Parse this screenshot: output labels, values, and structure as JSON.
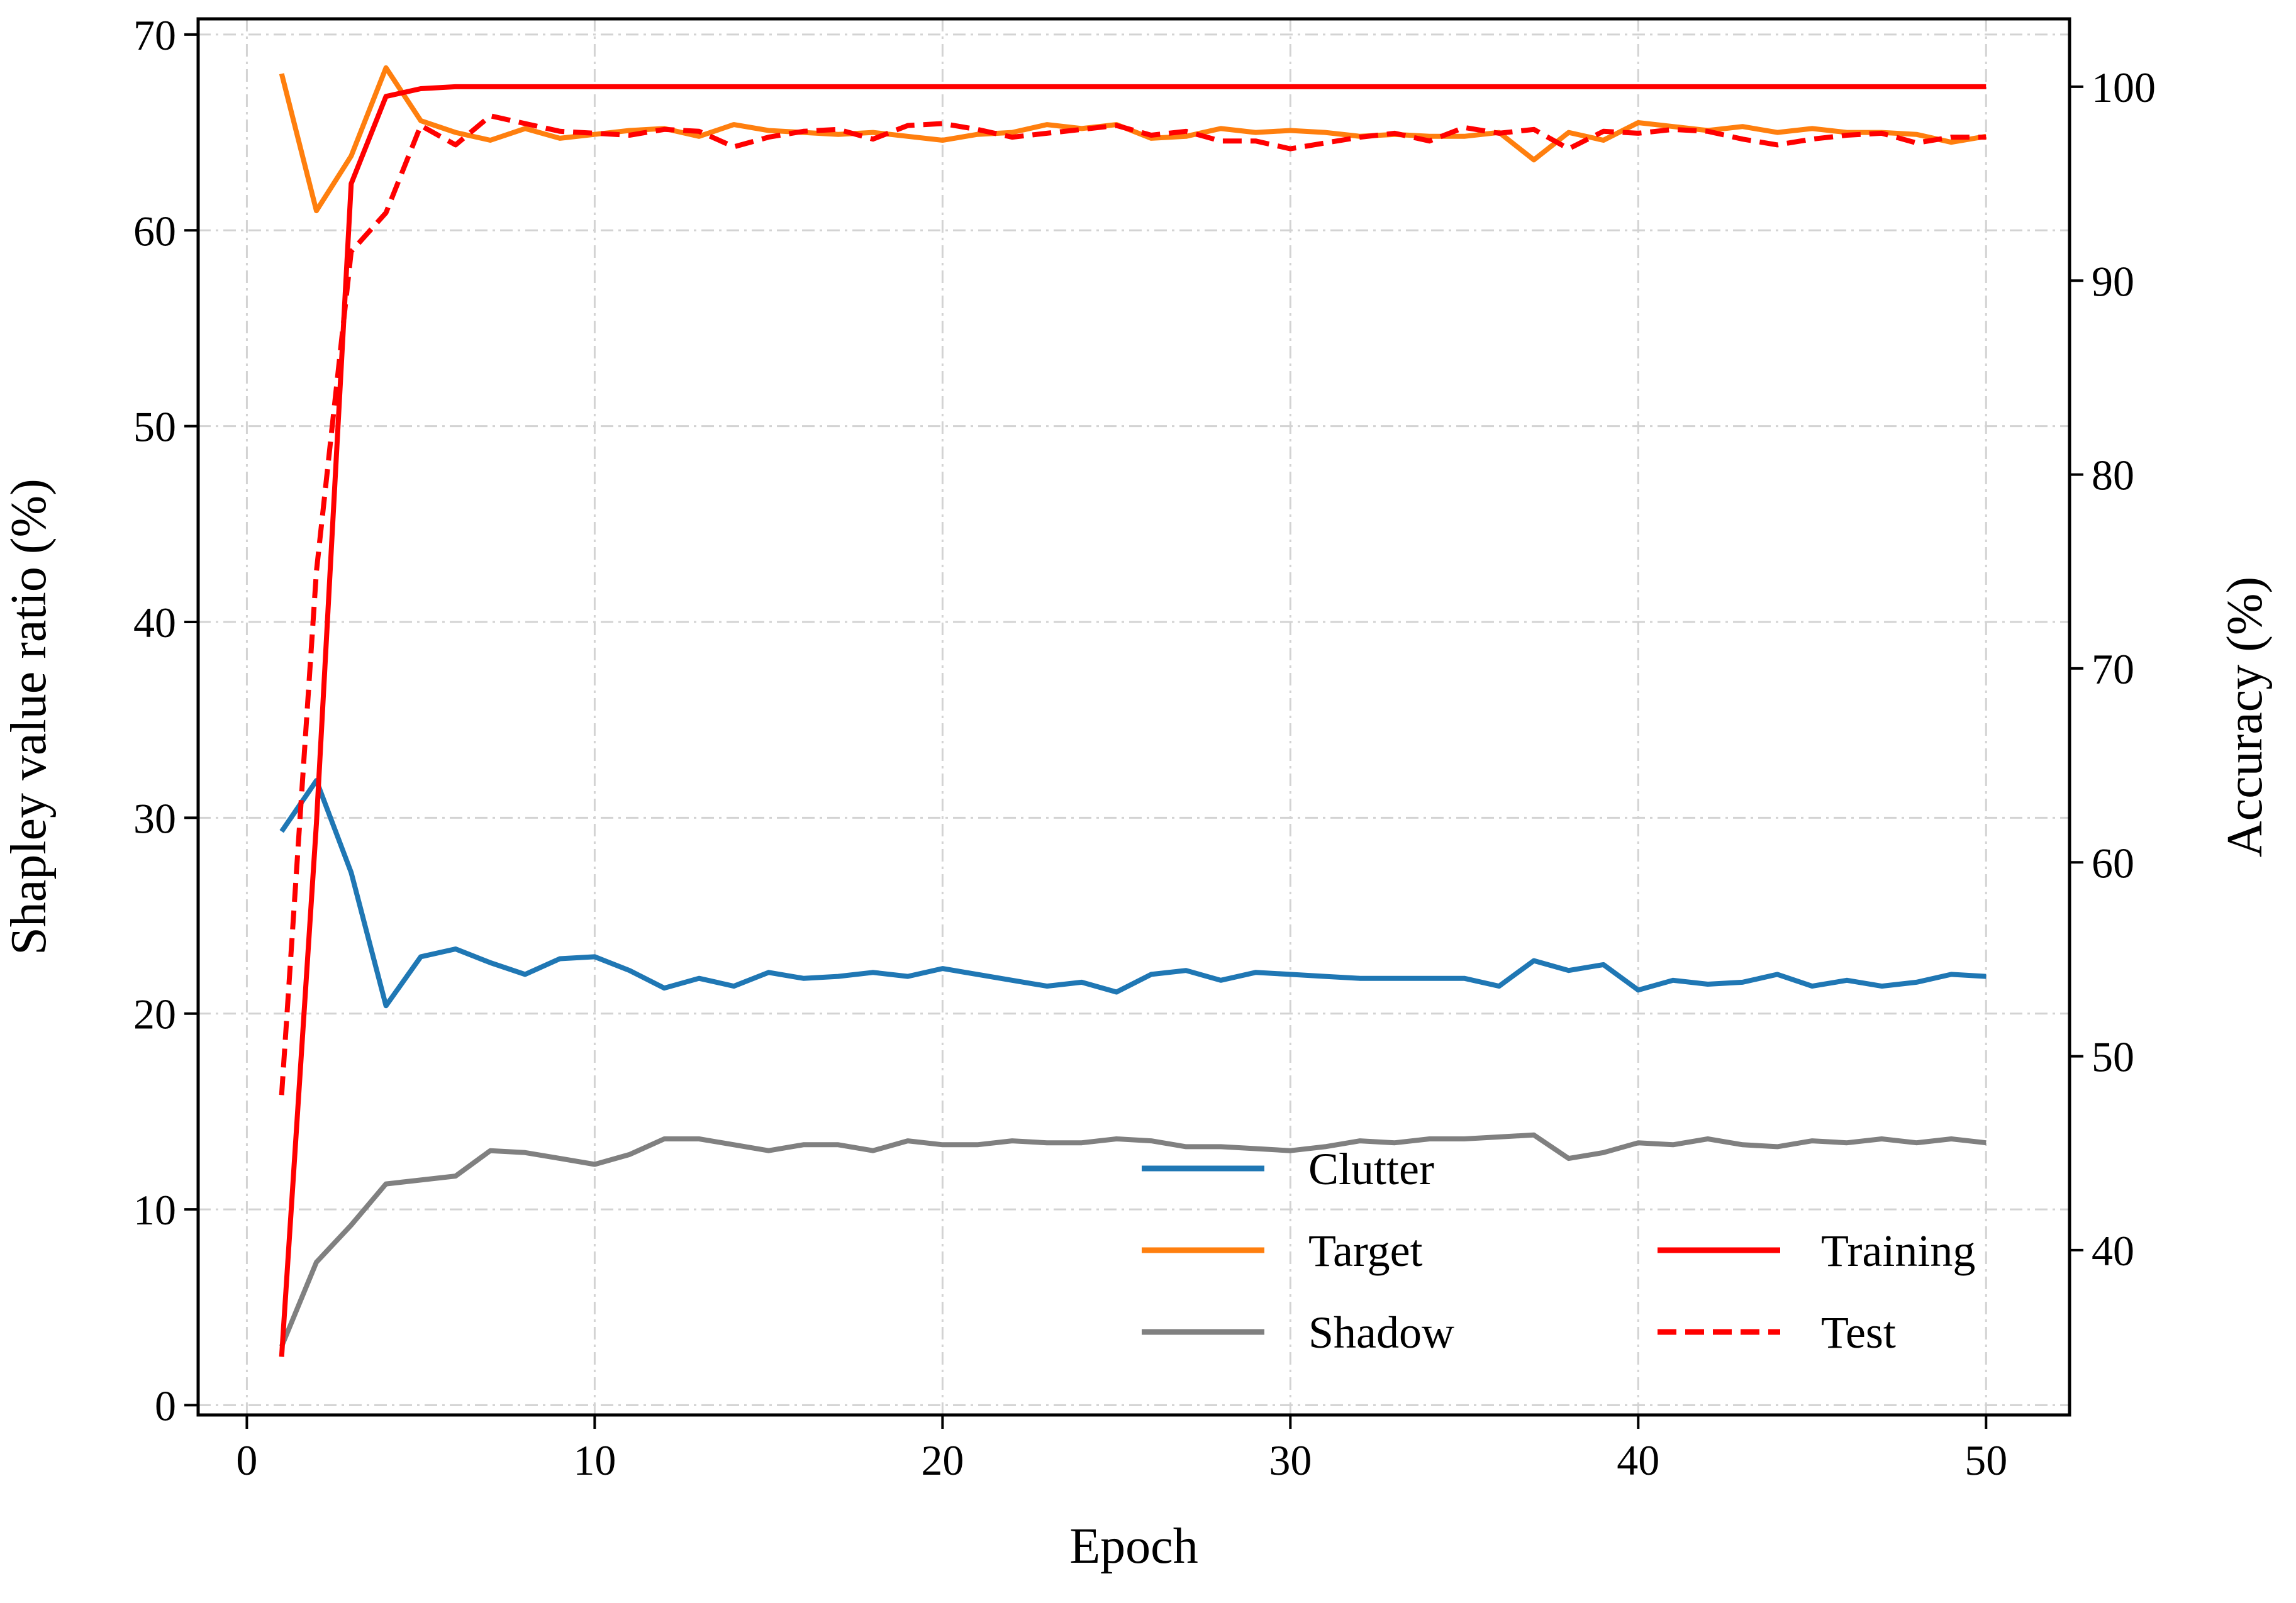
{
  "chart_data": {
    "type": "line",
    "title": "",
    "xlabel": "Epoch",
    "ylabel": "Shapley value ratio (%)",
    "y2label": "Accuracy (%)",
    "xlim": [
      -1.4,
      52.4
    ],
    "ylim": [
      -0.5,
      70.8
    ],
    "y2lim": [
      31.5,
      103.5
    ],
    "xticks": [
      0,
      10,
      20,
      30,
      40,
      50
    ],
    "yticks": [
      0,
      10,
      20,
      30,
      40,
      50,
      60,
      70
    ],
    "y2ticks": [
      40,
      50,
      60,
      70,
      80,
      90,
      100
    ],
    "grid": true,
    "legend_placement": "lower-right",
    "x": [
      1,
      2,
      3,
      4,
      5,
      6,
      7,
      8,
      9,
      10,
      11,
      12,
      13,
      14,
      15,
      16,
      17,
      18,
      19,
      20,
      21,
      22,
      23,
      24,
      25,
      26,
      27,
      28,
      29,
      30,
      31,
      32,
      33,
      34,
      35,
      36,
      37,
      38,
      39,
      40,
      41,
      42,
      43,
      44,
      45,
      46,
      47,
      48,
      49,
      50
    ],
    "series": [
      {
        "name": "Clutter",
        "axis": "left",
        "color": "#1f77b4",
        "style": "solid",
        "values": [
          29.3,
          31.9,
          27.2,
          20.4,
          22.9,
          23.3,
          22.6,
          22.0,
          22.8,
          22.9,
          22.2,
          21.3,
          21.8,
          21.4,
          22.1,
          21.8,
          21.9,
          22.1,
          21.9,
          22.3,
          22.0,
          21.7,
          21.4,
          21.6,
          21.1,
          22.0,
          22.2,
          21.7,
          22.1,
          22.0,
          21.9,
          21.8,
          21.8,
          21.8,
          21.8,
          21.4,
          22.7,
          22.2,
          22.5,
          21.2,
          21.7,
          21.5,
          21.6,
          22.0,
          21.4,
          21.7,
          21.4,
          21.6,
          22.0,
          21.9
        ]
      },
      {
        "name": "Target",
        "axis": "left",
        "color": "#ff7f0e",
        "style": "solid",
        "values": [
          68.0,
          61.0,
          63.8,
          68.3,
          65.6,
          65.0,
          64.6,
          65.2,
          64.7,
          64.9,
          65.1,
          65.2,
          64.8,
          65.4,
          65.1,
          65.0,
          64.9,
          65.0,
          64.8,
          64.6,
          64.9,
          65.0,
          65.4,
          65.2,
          65.4,
          64.7,
          64.8,
          65.2,
          65.0,
          65.1,
          65.0,
          64.8,
          64.9,
          64.8,
          64.8,
          65.0,
          63.6,
          65.0,
          64.6,
          65.5,
          65.3,
          65.1,
          65.3,
          65.0,
          65.2,
          65.0,
          65.0,
          64.9,
          64.5,
          64.8
        ]
      },
      {
        "name": "Shadow",
        "axis": "left",
        "color": "#808080",
        "style": "solid",
        "values": [
          3.0,
          7.3,
          9.2,
          11.3,
          11.5,
          11.7,
          13.0,
          12.9,
          12.6,
          12.3,
          12.8,
          13.6,
          13.6,
          13.3,
          13.0,
          13.3,
          13.3,
          13.0,
          13.5,
          13.3,
          13.3,
          13.5,
          13.4,
          13.4,
          13.6,
          13.5,
          13.2,
          13.2,
          13.1,
          13.0,
          13.2,
          13.5,
          13.4,
          13.6,
          13.6,
          13.7,
          13.8,
          12.6,
          12.9,
          13.4,
          13.3,
          13.6,
          13.3,
          13.2,
          13.5,
          13.4,
          13.6,
          13.4,
          13.6,
          13.4
        ]
      },
      {
        "name": "Training",
        "axis": "right",
        "color": "#ff0000",
        "style": "solid",
        "values": [
          34.5,
          62.0,
          95.0,
          99.5,
          99.9,
          100.0,
          100.0,
          100.0,
          100.0,
          100.0,
          100.0,
          100.0,
          100.0,
          100.0,
          100.0,
          100.0,
          100.0,
          100.0,
          100.0,
          100.0,
          100.0,
          100.0,
          100.0,
          100.0,
          100.0,
          100.0,
          100.0,
          100.0,
          100.0,
          100.0,
          100.0,
          100.0,
          100.0,
          100.0,
          100.0,
          100.0,
          100.0,
          100.0,
          100.0,
          100.0,
          100.0,
          100.0,
          100.0,
          100.0,
          100.0,
          100.0,
          100.0,
          100.0,
          100.0,
          100.0
        ]
      },
      {
        "name": "Test",
        "axis": "right",
        "color": "#ff0000",
        "style": "dashed",
        "values": [
          48.0,
          75.0,
          91.5,
          93.5,
          98.0,
          97.0,
          98.5,
          98.1,
          97.7,
          97.6,
          97.5,
          97.8,
          97.7,
          96.9,
          97.4,
          97.7,
          97.8,
          97.3,
          98.0,
          98.1,
          97.8,
          97.4,
          97.6,
          97.8,
          98.0,
          97.5,
          97.7,
          97.2,
          97.2,
          96.8,
          97.1,
          97.4,
          97.6,
          97.2,
          97.9,
          97.6,
          97.8,
          96.8,
          97.7,
          97.6,
          97.8,
          97.7,
          97.3,
          97.0,
          97.3,
          97.5,
          97.6,
          97.1,
          97.4,
          97.4
        ]
      }
    ]
  }
}
